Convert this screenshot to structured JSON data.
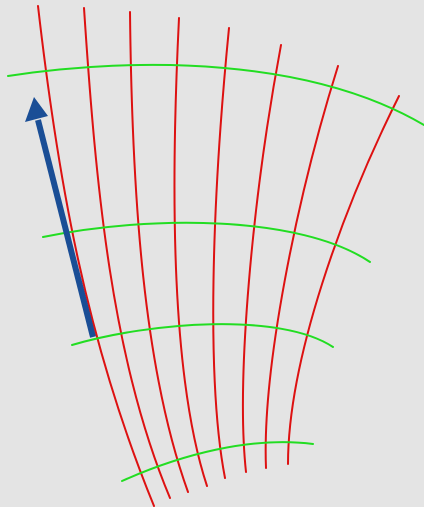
{
  "diagram": {
    "colors": {
      "background": "#e4e4e4",
      "radial_lines": "#dd1111",
      "arc_lines": "#22dd22",
      "arrow": "#1a4e96"
    },
    "radial_line_count": 8,
    "arc_line_count": 4,
    "arrow_count": 1
  }
}
